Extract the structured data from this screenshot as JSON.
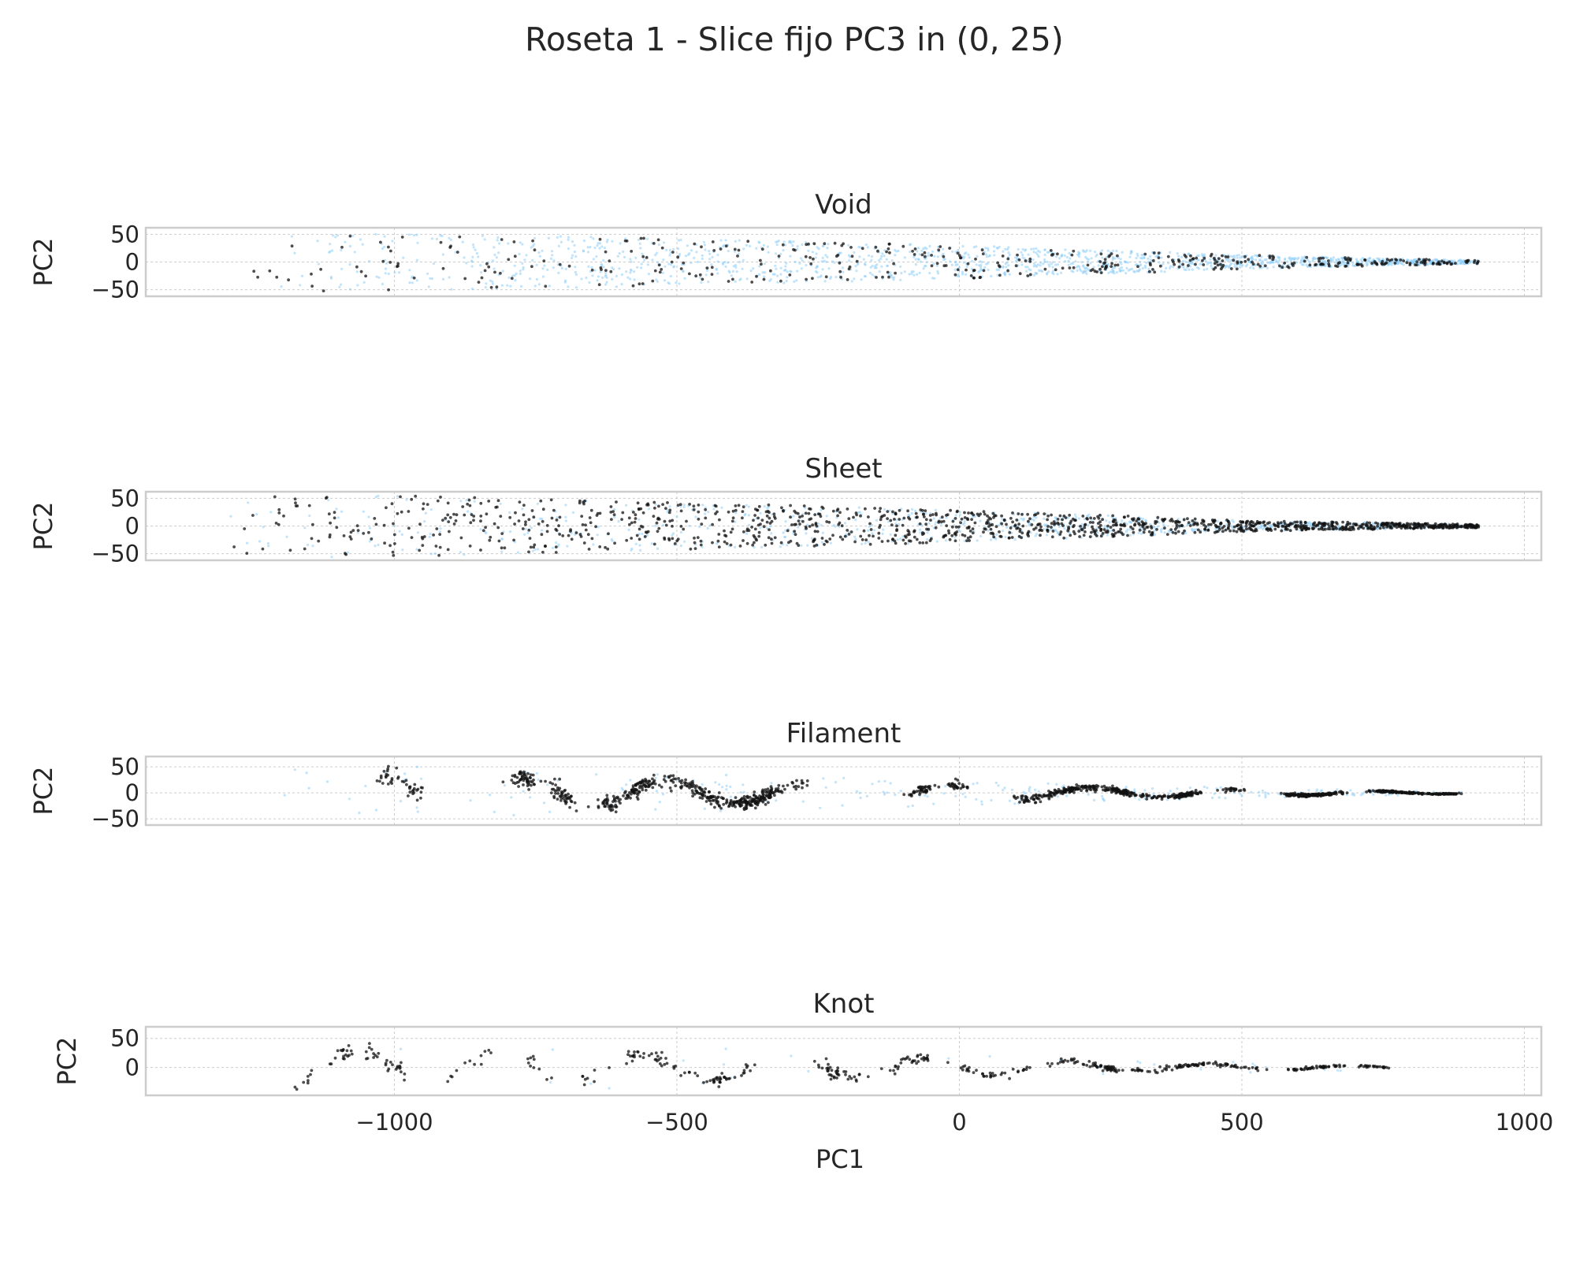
{
  "chart_data": {
    "type": "scatter",
    "title": "Roseta 1 - Slice fijo PC3 in (0, 25)",
    "xlabel": "PC1",
    "xlim": [
      -1440,
      1030
    ],
    "x_ticks": [
      -1000,
      -500,
      0,
      500,
      1000
    ],
    "x_tick_labels": [
      "−1000",
      "−500",
      "0",
      "500",
      "1000"
    ],
    "grid": true,
    "colors": {
      "background": "#ffffff",
      "highlight": "#111111",
      "context": "#8ecdf7",
      "frame": "#cccccc",
      "text": "#262626"
    },
    "panels": [
      {
        "title": "Void",
        "ylabel": "PC2",
        "ylim": [
          -62,
          62
        ],
        "y_ticks": [
          50,
          0,
          -50
        ],
        "y_tick_labels": [
          "50",
          "0",
          "−50"
        ],
        "envelope": {
          "x": [
            -1280,
            -900,
            -600,
            -300,
            0,
            300,
            600,
            920
          ],
          "half_width": [
            60,
            50,
            45,
            38,
            30,
            20,
            10,
            3
          ]
        },
        "highlight": {
          "count": 420,
          "x_range": [
            -1260,
            920
          ]
        },
        "context": {
          "count": 1500,
          "x_range": [
            -1250,
            920
          ]
        }
      },
      {
        "title": "Sheet",
        "ylabel": "PC2",
        "ylim": [
          -62,
          62
        ],
        "y_ticks": [
          50,
          0,
          -50
        ],
        "y_tick_labels": [
          "50",
          "0",
          "−50"
        ],
        "envelope": {
          "x": [
            -1310,
            -1000,
            -700,
            -400,
            -100,
            200,
            500,
            920
          ],
          "half_width": [
            58,
            55,
            48,
            40,
            32,
            22,
            10,
            3
          ]
        },
        "highlight": {
          "count": 1300,
          "x_range": [
            -1310,
            920
          ]
        },
        "context": {
          "count": 800,
          "x_range": [
            -1300,
            920
          ]
        }
      },
      {
        "title": "Filament",
        "ylabel": "PC2",
        "ylim": [
          -62,
          70
        ],
        "y_ticks": [
          50,
          0,
          -50
        ],
        "y_tick_labels": [
          "50",
          "0",
          "−50"
        ],
        "envelope": {
          "x": [
            -1310,
            -1000,
            -700,
            -400,
            -100,
            200,
            500,
            890
          ],
          "half_width": [
            60,
            55,
            45,
            35,
            28,
            18,
            10,
            3
          ]
        },
        "highlight": {
          "count": 1400,
          "x_range": [
            -1310,
            890
          ]
        },
        "context": {
          "count": 250,
          "x_range": [
            -1300,
            890
          ]
        }
      },
      {
        "title": "Knot",
        "ylabel": "PC2",
        "ylim": [
          -48,
          70
        ],
        "y_ticks": [
          50,
          0
        ],
        "y_tick_labels": [
          "50",
          "0"
        ],
        "envelope": {
          "x": [
            -1280,
            -900,
            -700,
            -400,
            -150,
            0,
            300,
            770
          ],
          "half_width": [
            55,
            48,
            40,
            35,
            30,
            22,
            12,
            5
          ]
        },
        "highlight": {
          "count": 500,
          "x_range": [
            -1280,
            770
          ]
        },
        "context": {
          "count": 30,
          "x_range": [
            -1280,
            770
          ]
        }
      }
    ]
  }
}
